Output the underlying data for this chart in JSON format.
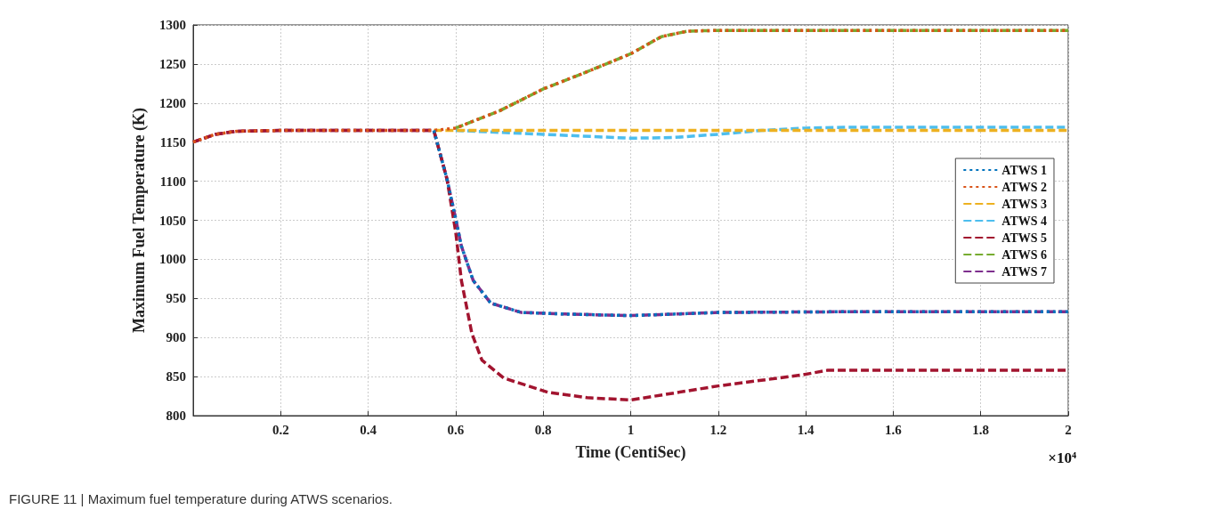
{
  "chart_data": {
    "type": "line",
    "xlabel": "Time (CentiSec)",
    "ylabel": "Maximum Fuel Temperature (K)",
    "xlim": [
      0,
      2
    ],
    "xticks": [
      0.2,
      0.4,
      0.6,
      0.8,
      1,
      1.2,
      1.4,
      1.6,
      1.8,
      2
    ],
    "ylim": [
      800,
      1300
    ],
    "yticks": [
      800,
      850,
      900,
      950,
      1000,
      1050,
      1100,
      1150,
      1200,
      1250,
      1300
    ],
    "grid": true,
    "legend": "right",
    "marker": "none",
    "annotations": [
      "×10⁴",
      "FIGURE 11 | Maximum fuel temperature during ATWS scenarios."
    ],
    "series": [
      {
        "name": "ATWS 1",
        "color": "#0072bd",
        "line_style": "dotted",
        "x": [
          0.55,
          0.58,
          0.6,
          0.613,
          0.64,
          0.68,
          0.75,
          0.85,
          1.0,
          1.2,
          1.5,
          2.0
        ],
        "values": [
          1165,
          1103,
          1052,
          1017,
          973,
          944,
          932,
          930,
          928,
          932,
          933,
          933
        ]
      },
      {
        "name": "ATWS 2",
        "color": "#d95319",
        "line_style": "dotted",
        "x": [
          0,
          0.05,
          0.1,
          0.2,
          0.55,
          0.6,
          0.7,
          0.8,
          0.9,
          1.0,
          1.07,
          1.13,
          1.2,
          2.0
        ],
        "values": [
          1150,
          1160,
          1164,
          1165,
          1165,
          1168,
          1190,
          1218,
          1240,
          1263,
          1285,
          1292,
          1293,
          1293
        ]
      },
      {
        "name": "ATWS 3",
        "color": "#edb120",
        "line_style": "dashed",
        "x": [
          0.55,
          2.0
        ],
        "values": [
          1165,
          1165
        ]
      },
      {
        "name": "ATWS 4",
        "color": "#4dbeee",
        "line_style": "dashed",
        "x": [
          0.6,
          0.8,
          1.0,
          1.1,
          1.2,
          1.3,
          1.4,
          1.5,
          2.0
        ],
        "values": [
          1165,
          1160,
          1155,
          1156,
          1160,
          1165,
          1168,
          1169,
          1169
        ]
      },
      {
        "name": "ATWS 5",
        "color": "#a2142f",
        "line_style": "dashed",
        "x": [
          0,
          0.05,
          0.1,
          0.2,
          0.55,
          0.58,
          0.6,
          0.613,
          0.637,
          0.66,
          0.71,
          0.81,
          0.9,
          1.0,
          1.2,
          1.39,
          1.45,
          2.0
        ],
        "values": [
          1150,
          1160,
          1164,
          1165,
          1165,
          1103,
          1035,
          973,
          905,
          871,
          848,
          830,
          823,
          820,
          838,
          852,
          858,
          858
        ]
      },
      {
        "name": "ATWS 6",
        "color": "#77ac30",
        "line_style": "dashed",
        "x": [
          0.6,
          0.7,
          0.8,
          0.9,
          1.0,
          1.07,
          1.13,
          1.2,
          2.0
        ],
        "values": [
          1168,
          1190,
          1218,
          1240,
          1263,
          1285,
          1292,
          1293,
          1293
        ]
      },
      {
        "name": "ATWS 7",
        "color": "#7e2f8e",
        "line_style": "dashed",
        "x": [
          0,
          0.05,
          0.1,
          0.2,
          0.55,
          0.58,
          0.6,
          0.613,
          0.64,
          0.68,
          0.75,
          0.85,
          1.0,
          1.2,
          1.5,
          2.0
        ],
        "values": [
          1150,
          1160,
          1164,
          1165,
          1165,
          1103,
          1052,
          1017,
          973,
          944,
          932,
          930,
          928,
          932,
          933,
          933
        ]
      }
    ]
  }
}
